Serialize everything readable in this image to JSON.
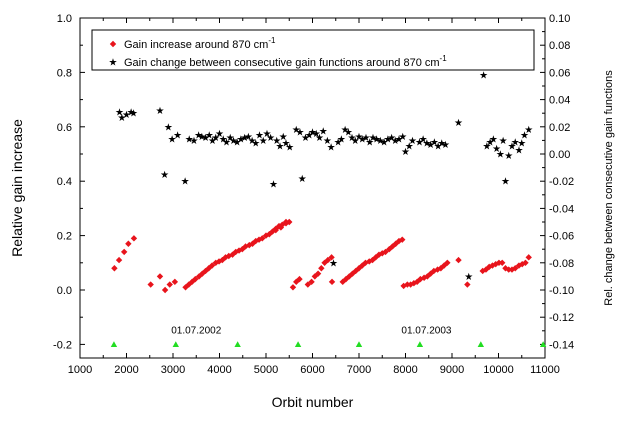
{
  "chart_data": {
    "type": "scatter",
    "xlabel": "Orbit number",
    "ylabel_left": "Relative gain increase",
    "ylabel_right": "Rel. change between consecutive gain functions",
    "xlim": [
      1000,
      11000
    ],
    "ylim_left": [
      -0.25,
      1.0
    ],
    "ylim_right": [
      -0.15,
      0.1
    ],
    "x_ticks": [
      1000,
      2000,
      3000,
      4000,
      5000,
      6000,
      7000,
      8000,
      9000,
      10000,
      11000
    ],
    "y_left_ticks": [
      -0.2,
      0.0,
      0.2,
      0.4,
      0.6,
      0.8,
      1.0
    ],
    "y_right_ticks": [
      -0.14,
      -0.12,
      -0.1,
      -0.08,
      -0.06,
      -0.04,
      -0.02,
      0.0,
      0.02,
      0.04,
      0.06,
      0.08,
      0.1
    ],
    "grid": false,
    "legend_position": "top",
    "annotations": [
      {
        "text": "01.07.2002",
        "x": 3500,
        "y": -0.145
      },
      {
        "text": "01.07.2003",
        "x": 8450,
        "y": -0.145
      }
    ],
    "series": [
      {
        "name": "Gain increase around 870 cm",
        "name_sup": "-1",
        "axis": "left",
        "marker": "diamond",
        "color": "#e8141c",
        "points": [
          [
            1740,
            0.08
          ],
          [
            1840,
            0.11
          ],
          [
            1950,
            0.14
          ],
          [
            2040,
            0.17
          ],
          [
            2160,
            0.19
          ],
          [
            2520,
            0.02
          ],
          [
            2720,
            0.05
          ],
          [
            2830,
            0.0
          ],
          [
            2930,
            0.02
          ],
          [
            3040,
            0.03
          ],
          [
            3270,
            0.01
          ],
          [
            3340,
            0.02
          ],
          [
            3410,
            0.03
          ],
          [
            3480,
            0.04
          ],
          [
            3560,
            0.05
          ],
          [
            3630,
            0.06
          ],
          [
            3700,
            0.07
          ],
          [
            3770,
            0.08
          ],
          [
            3840,
            0.09
          ],
          [
            3920,
            0.1
          ],
          [
            3990,
            0.105
          ],
          [
            4060,
            0.11
          ],
          [
            4130,
            0.12
          ],
          [
            4200,
            0.125
          ],
          [
            4280,
            0.13
          ],
          [
            4350,
            0.14
          ],
          [
            4420,
            0.145
          ],
          [
            4490,
            0.15
          ],
          [
            4560,
            0.16
          ],
          [
            4640,
            0.165
          ],
          [
            4710,
            0.17
          ],
          [
            4780,
            0.18
          ],
          [
            4850,
            0.185
          ],
          [
            4920,
            0.19
          ],
          [
            5000,
            0.2
          ],
          [
            5070,
            0.205
          ],
          [
            5140,
            0.215
          ],
          [
            5210,
            0.225
          ],
          [
            5280,
            0.235
          ],
          [
            5350,
            0.24
          ],
          [
            5430,
            0.25
          ],
          [
            5500,
            0.25
          ],
          [
            5210,
            0.22
          ],
          [
            5320,
            0.23
          ],
          [
            5430,
            0.245
          ],
          [
            5580,
            0.01
          ],
          [
            5650,
            0.03
          ],
          [
            5720,
            0.04
          ],
          [
            5900,
            0.02
          ],
          [
            5980,
            0.03
          ],
          [
            6050,
            0.05
          ],
          [
            6120,
            0.06
          ],
          [
            6190,
            0.08
          ],
          [
            6260,
            0.1
          ],
          [
            6330,
            0.11
          ],
          [
            6410,
            0.12
          ],
          [
            6420,
            0.03
          ],
          [
            6650,
            0.03
          ],
          [
            6720,
            0.04
          ],
          [
            6790,
            0.05
          ],
          [
            6860,
            0.06
          ],
          [
            6930,
            0.07
          ],
          [
            7000,
            0.08
          ],
          [
            7070,
            0.09
          ],
          [
            7140,
            0.1
          ],
          [
            7220,
            0.105
          ],
          [
            7290,
            0.11
          ],
          [
            7360,
            0.12
          ],
          [
            7430,
            0.13
          ],
          [
            7500,
            0.135
          ],
          [
            7570,
            0.14
          ],
          [
            7650,
            0.15
          ],
          [
            7720,
            0.16
          ],
          [
            7790,
            0.17
          ],
          [
            7860,
            0.18
          ],
          [
            7930,
            0.185
          ],
          [
            7960,
            0.015
          ],
          [
            8040,
            0.02
          ],
          [
            8110,
            0.02
          ],
          [
            8180,
            0.025
          ],
          [
            8250,
            0.03
          ],
          [
            8320,
            0.04
          ],
          [
            8400,
            0.045
          ],
          [
            8470,
            0.05
          ],
          [
            8540,
            0.06
          ],
          [
            8610,
            0.07
          ],
          [
            8690,
            0.075
          ],
          [
            8760,
            0.08
          ],
          [
            8830,
            0.09
          ],
          [
            8900,
            0.1
          ],
          [
            9140,
            0.11
          ],
          [
            9330,
            0.02
          ],
          [
            9660,
            0.07
          ],
          [
            9730,
            0.075
          ],
          [
            9800,
            0.085
          ],
          [
            9870,
            0.09
          ],
          [
            9940,
            0.095
          ],
          [
            10010,
            0.1
          ],
          [
            10080,
            0.1
          ],
          [
            10150,
            0.08
          ],
          [
            10220,
            0.075
          ],
          [
            10290,
            0.075
          ],
          [
            10360,
            0.08
          ],
          [
            10440,
            0.09
          ],
          [
            10510,
            0.095
          ],
          [
            10580,
            0.1
          ],
          [
            10650,
            0.12
          ]
        ]
      },
      {
        "name": "Gain change between consecutive gain functions around 870 cm",
        "name_sup": "-1",
        "axis": "right",
        "marker": "star",
        "color": "#1414c8",
        "points": [
          [
            1850,
            0.031
          ],
          [
            1900,
            0.027
          ],
          [
            2000,
            0.029
          ],
          [
            2100,
            0.031
          ],
          [
            2150,
            0.03
          ],
          [
            2720,
            0.032
          ],
          [
            2820,
            -0.015
          ],
          [
            2900,
            0.02
          ],
          [
            2980,
            0.011
          ],
          [
            3100,
            0.014
          ],
          [
            3260,
            -0.02
          ],
          [
            3350,
            0.011
          ],
          [
            3450,
            0.01
          ],
          [
            3550,
            0.014
          ],
          [
            3620,
            0.013
          ],
          [
            3700,
            0.012
          ],
          [
            3780,
            0.014
          ],
          [
            3850,
            0.01
          ],
          [
            3920,
            0.012
          ],
          [
            4000,
            0.015
          ],
          [
            4080,
            0.011
          ],
          [
            4150,
            0.009
          ],
          [
            4230,
            0.012
          ],
          [
            4300,
            0.01
          ],
          [
            4380,
            0.009
          ],
          [
            4460,
            0.011
          ],
          [
            4540,
            0.012
          ],
          [
            4620,
            0.013
          ],
          [
            4700,
            0.01
          ],
          [
            4780,
            0.008
          ],
          [
            4860,
            0.014
          ],
          [
            4940,
            0.01
          ],
          [
            5020,
            0.015
          ],
          [
            5100,
            0.012
          ],
          [
            5160,
            -0.022
          ],
          [
            5230,
            0.01
          ],
          [
            5300,
            0.006
          ],
          [
            5370,
            0.013
          ],
          [
            5430,
            0.008
          ],
          [
            5510,
            0.005
          ],
          [
            5650,
            0.018
          ],
          [
            5730,
            0.016
          ],
          [
            5780,
            -0.018
          ],
          [
            5850,
            0.012
          ],
          [
            5930,
            0.014
          ],
          [
            6000,
            0.016
          ],
          [
            6080,
            0.015
          ],
          [
            6150,
            0.012
          ],
          [
            6230,
            0.017
          ],
          [
            6320,
            0.01
          ],
          [
            6400,
            0.005
          ],
          [
            6450,
            -0.08
          ],
          [
            6550,
            0.009
          ],
          [
            6620,
            0.011
          ],
          [
            6700,
            0.018
          ],
          [
            6770,
            0.016
          ],
          [
            6850,
            0.012
          ],
          [
            6920,
            0.01
          ],
          [
            7000,
            0.013
          ],
          [
            7070,
            0.011
          ],
          [
            7150,
            0.012
          ],
          [
            7230,
            0.009
          ],
          [
            7300,
            0.012
          ],
          [
            7380,
            0.011
          ],
          [
            7460,
            0.01
          ],
          [
            7540,
            0.009
          ],
          [
            7620,
            0.011
          ],
          [
            7700,
            0.012
          ],
          [
            7780,
            0.01
          ],
          [
            7860,
            0.011
          ],
          [
            7940,
            0.013
          ],
          [
            8000,
            0.002
          ],
          [
            8080,
            0.006
          ],
          [
            8150,
            0.01
          ],
          [
            8300,
            0.009
          ],
          [
            8380,
            0.011
          ],
          [
            8460,
            0.008
          ],
          [
            8540,
            0.007
          ],
          [
            8620,
            0.009
          ],
          [
            8700,
            0.006
          ],
          [
            8780,
            0.008
          ],
          [
            8860,
            0.007
          ],
          [
            9140,
            0.023
          ],
          [
            9360,
            -0.09
          ],
          [
            9680,
            0.058
          ],
          [
            9750,
            0.006
          ],
          [
            9820,
            0.009
          ],
          [
            9890,
            0.011
          ],
          [
            9960,
            0.004
          ],
          [
            10040,
            0.0
          ],
          [
            10100,
            0.01
          ],
          [
            10150,
            -0.02
          ],
          [
            10220,
            -0.001
          ],
          [
            10290,
            0.006
          ],
          [
            10360,
            0.009
          ],
          [
            10440,
            0.003
          ],
          [
            10500,
            0.008
          ],
          [
            10560,
            0.014
          ],
          [
            10650,
            0.018
          ]
        ]
      },
      {
        "name": "",
        "axis": "left",
        "marker": "triangle",
        "color": "#22dd22",
        "points": [
          [
            1730,
            -0.2
          ],
          [
            3060,
            -0.2
          ],
          [
            4390,
            -0.2
          ],
          [
            5690,
            -0.2
          ],
          [
            7000,
            -0.2
          ],
          [
            8310,
            -0.2
          ],
          [
            9620,
            -0.2
          ],
          [
            10960,
            -0.2
          ]
        ]
      }
    ]
  }
}
